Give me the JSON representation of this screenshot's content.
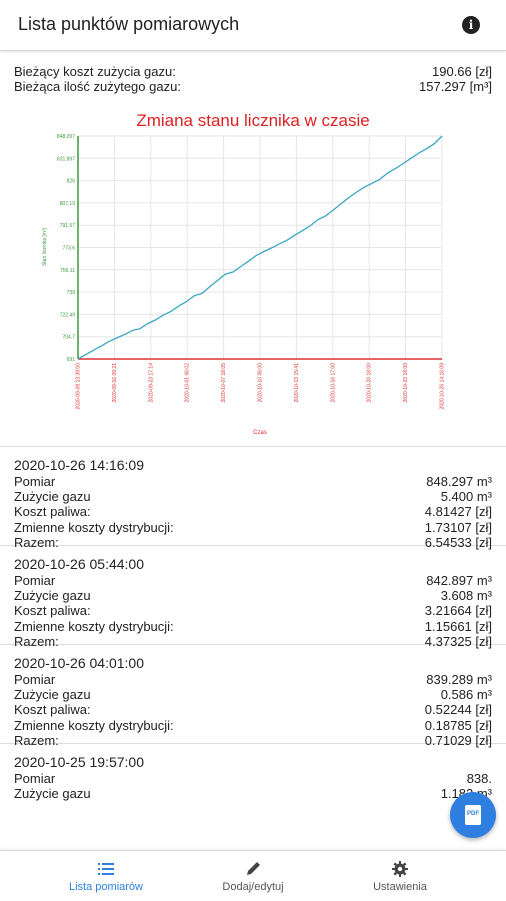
{
  "app_title": "Lista punktów pomiarowych",
  "info_icon_glyph": "i",
  "summary": {
    "cost_label": "Bieżący koszt zużycia gazu:",
    "cost_value": "190.66 [zł]",
    "usage_label": "Bieżąca ilość zużytego gazu:",
    "usage_value": "157.297 [m³]"
  },
  "chart_data": {
    "type": "line",
    "title": "Zmiana stanu licznika w czasie",
    "xlabel": "Czas",
    "ylabel": "Stan licznika [m³]",
    "x_ticks": [
      "2020-09-09 13:39:00",
      "2020-09-16 09:21",
      "2020-09-23 17:14",
      "2020-10-01 06:02",
      "2020-10-07 18:05",
      "2020-10-10 06:00",
      "2020-10-13 15:41",
      "2020-10-16 17:00",
      "2020-10-20 18:00",
      "2020-10-23 18:00",
      "2020-10-26 14:16:09"
    ],
    "y_ticks": [
      691.0,
      704.7,
      722.49,
      739.0,
      756.11,
      773.6,
      791.57,
      807.19,
      826.0,
      831.897,
      848.297
    ],
    "ylim": [
      691.0,
      848.297
    ],
    "color": "#3aa6c4",
    "title_color": "#e02020",
    "y_axis_color": "#3a9a3a",
    "x_axis_color": "#e03030",
    "series": [
      {
        "values": [
          691.0,
          694.0,
          697.2,
          700.1,
          703.4,
          705.8,
          708.2,
          711.0,
          712.4,
          716.0,
          718.5,
          722.0,
          724.6,
          728.3,
          731.5,
          735.6,
          737.2,
          742.0,
          746.3,
          750.8,
          752.4,
          756.2,
          760.0,
          763.9,
          766.8,
          769.4,
          772.2,
          774.8,
          778.4,
          781.6,
          785.0,
          789.4,
          792.0,
          796.3,
          800.7,
          805.0,
          808.8,
          812.4,
          815.0,
          817.8,
          822.3,
          825.4,
          828.9,
          832.6,
          836.2,
          839.289,
          842.897,
          848.297
        ]
      }
    ]
  },
  "entries": [
    {
      "timestamp": "2020-10-26 14:16:09",
      "rows": [
        [
          "Pomiar",
          "848.297 m³"
        ],
        [
          "Zużycie gazu",
          "5.400 m³"
        ],
        [
          "Koszt paliwa:",
          "4.81427 [zł]"
        ],
        [
          "Zmienne koszty dystrybucji:",
          "1.73107 [zł]"
        ],
        [
          "Razem:",
          "6.54533 [zł]"
        ]
      ]
    },
    {
      "timestamp": "2020-10-26 05:44:00",
      "rows": [
        [
          "Pomiar",
          "842.897 m³"
        ],
        [
          "Zużycie gazu",
          "3.608 m³"
        ],
        [
          "Koszt paliwa:",
          "3.21664 [zł]"
        ],
        [
          "Zmienne koszty dystrybucji:",
          "1.15661 [zł]"
        ],
        [
          "Razem:",
          "4.37325 [zł]"
        ]
      ]
    },
    {
      "timestamp": "2020-10-26 04:01:00",
      "rows": [
        [
          "Pomiar",
          "839.289 m³"
        ],
        [
          "Zużycie gazu",
          "0.586 m³"
        ],
        [
          "Koszt paliwa:",
          "0.52244 [zł]"
        ],
        [
          "Zmienne koszty dystrybucji:",
          "0.18785 [zł]"
        ],
        [
          "Razem:",
          "0.71029 [zł]"
        ]
      ]
    },
    {
      "timestamp": "2020-10-25 19:57:00",
      "rows": [
        [
          "Pomiar",
          "838."
        ],
        [
          "Zużycie gazu",
          "1.182 m³"
        ]
      ]
    }
  ],
  "fab_glyph": "PDF",
  "nav": [
    {
      "label": "Lista pomiarów",
      "icon": "list-icon",
      "active": true
    },
    {
      "label": "Dodaj/edytuj",
      "icon": "pencil-icon",
      "active": false
    },
    {
      "label": "Ustawienia",
      "icon": "gear-icon",
      "active": false
    }
  ]
}
